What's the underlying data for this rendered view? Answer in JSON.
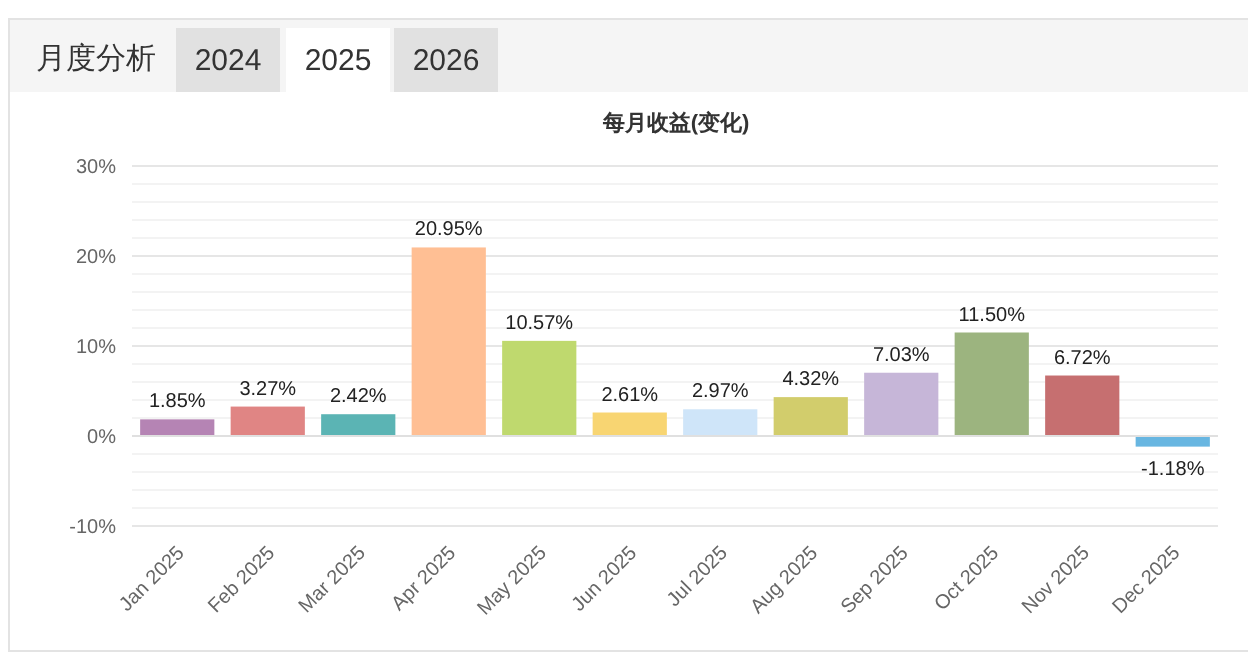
{
  "chart_data": {
    "type": "bar",
    "title": "每月收益(变化)",
    "annotations": [
      "月度分析",
      "2024",
      "2025",
      "2026"
    ],
    "categories": [
      "Jan 2025",
      "Feb 2025",
      "Mar 2025",
      "Apr 2025",
      "May 2025",
      "Jun 2025",
      "Jul 2025",
      "Aug 2025",
      "Sep 2025",
      "Oct 2025",
      "Nov 2025",
      "Dec 2025"
    ],
    "values": [
      1.85,
      3.27,
      2.42,
      20.95,
      10.57,
      2.61,
      2.97,
      4.32,
      7.03,
      11.5,
      6.72,
      -1.18
    ],
    "value_labels": [
      "1.85%",
      "3.27%",
      "2.42%",
      "20.95%",
      "10.57%",
      "2.61%",
      "2.97%",
      "4.32%",
      "7.03%",
      "11.50%",
      "6.72%",
      "-1.18%"
    ],
    "colors": [
      "#b584b4",
      "#e08584",
      "#5bb4b4",
      "#ffbf94",
      "#bfd96e",
      "#f8d572",
      "#cfe5f9",
      "#d2cd6c",
      "#c6b6d8",
      "#9cb47f",
      "#c66f70",
      "#68b6e1"
    ],
    "ylim": [
      -10,
      30
    ],
    "yticks": [
      {
        "value": -10,
        "label": "-10%"
      },
      {
        "value": -8,
        "label": null
      },
      {
        "value": -6,
        "label": null
      },
      {
        "value": -4,
        "label": null
      },
      {
        "value": -2,
        "label": null
      },
      {
        "value": 0,
        "label": "0%"
      },
      {
        "value": 2,
        "label": null
      },
      {
        "value": 4,
        "label": null
      },
      {
        "value": 6,
        "label": null
      },
      {
        "value": 8,
        "label": null
      },
      {
        "value": 10,
        "label": "10%"
      },
      {
        "value": 12,
        "label": null
      },
      {
        "value": 14,
        "label": null
      },
      {
        "value": 16,
        "label": null
      },
      {
        "value": 18,
        "label": null
      },
      {
        "value": 20,
        "label": "20%"
      },
      {
        "value": 22,
        "label": null
      },
      {
        "value": 24,
        "label": null
      },
      {
        "value": 26,
        "label": null
      },
      {
        "value": 28,
        "label": null
      },
      {
        "value": 30,
        "label": "30%"
      }
    ],
    "grid": "y"
  }
}
